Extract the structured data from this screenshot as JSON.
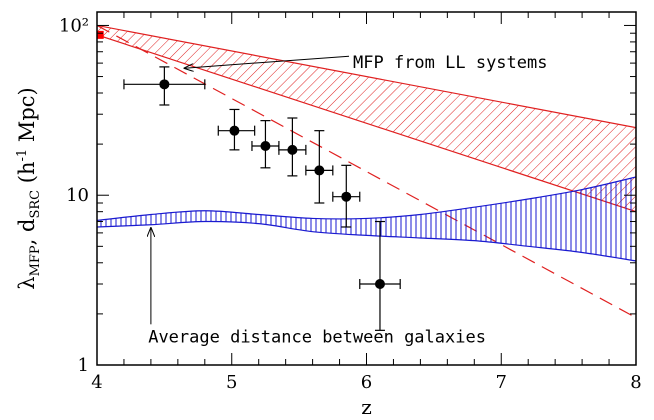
{
  "chart_data": {
    "type": "scatter",
    "x_axis": {
      "label": "z",
      "range": [
        4,
        8
      ],
      "ticks": [
        4,
        5,
        6,
        7,
        8
      ],
      "tick_labels": [
        "4",
        "5",
        "6",
        "7",
        "8"
      ]
    },
    "y_axis": {
      "scale": "log",
      "range": [
        1,
        120
      ],
      "ticks": [
        1,
        10,
        100
      ],
      "tick_labels": [
        "1",
        "10",
        "10²"
      ],
      "label_main": "λ",
      "label_sub1": "MFP",
      "label_sep": ", d",
      "label_sub2": "SRC",
      "label_unit_a": " (h",
      "label_unit_sup": "-1",
      "label_unit_b": " Mpc)"
    },
    "grid": false,
    "points": [
      {
        "x": 4.5,
        "y": 45,
        "xerr": [
          0.3,
          0.3
        ],
        "yerr": [
          34,
          57
        ]
      },
      {
        "x": 5.02,
        "y": 24,
        "xerr": [
          0.12,
          0.15
        ],
        "yerr": [
          18.5,
          32
        ]
      },
      {
        "x": 5.25,
        "y": 19.5,
        "xerr": [
          0.1,
          0.1
        ],
        "yerr": [
          14.5,
          27.5
        ]
      },
      {
        "x": 5.45,
        "y": 18.5,
        "xerr": [
          0.1,
          0.1
        ],
        "yerr": [
          13,
          28.5
        ]
      },
      {
        "x": 5.65,
        "y": 14,
        "xerr": [
          0.1,
          0.1
        ],
        "yerr": [
          9,
          24
        ]
      },
      {
        "x": 5.85,
        "y": 9.8,
        "xerr": [
          0.1,
          0.1
        ],
        "yerr": [
          6.5,
          15
        ]
      },
      {
        "x": 6.1,
        "y": 3.0,
        "xerr": [
          0.15,
          0.15
        ],
        "yerr": [
          1.6,
          7
        ]
      }
    ],
    "red_square": {
      "x": 4.02,
      "y": 88
    },
    "ll_band": {
      "x": [
        4.0,
        8.0
      ],
      "lower": [
        88,
        8.0
      ],
      "upper": [
        100,
        25
      ]
    },
    "dashed_line": {
      "x": [
        4.0,
        8.0
      ],
      "y": [
        100,
        1.9
      ]
    },
    "galaxy_band": {
      "x": [
        4.0,
        4.4,
        4.8,
        5.2,
        5.6,
        6.0,
        6.4,
        6.8,
        7.2,
        7.6,
        8.0
      ],
      "upper": [
        7.1,
        7.7,
        8.1,
        7.7,
        7.3,
        7.3,
        7.7,
        8.5,
        9.5,
        10.8,
        12.8
      ],
      "lower": [
        6.5,
        6.7,
        7.0,
        6.8,
        6.1,
        5.8,
        5.6,
        5.4,
        5.0,
        4.6,
        4.1
      ]
    },
    "annotations": [
      {
        "text": "MFP from LL systems",
        "text_x": 5.9,
        "text_y": 56,
        "arrow_to_x": 4.65,
        "arrow_to_y": 56
      },
      {
        "text": "Average distance between galaxies",
        "text_x": 4.38,
        "text_y": 1.36,
        "arrow_to_x": 4.4,
        "arrow_to_y": 6.4
      }
    ],
    "colors": {
      "ll_band": "#e02020",
      "galaxy_band": "#1a1ad0",
      "points": "#000000",
      "square": "#ff0000"
    }
  }
}
